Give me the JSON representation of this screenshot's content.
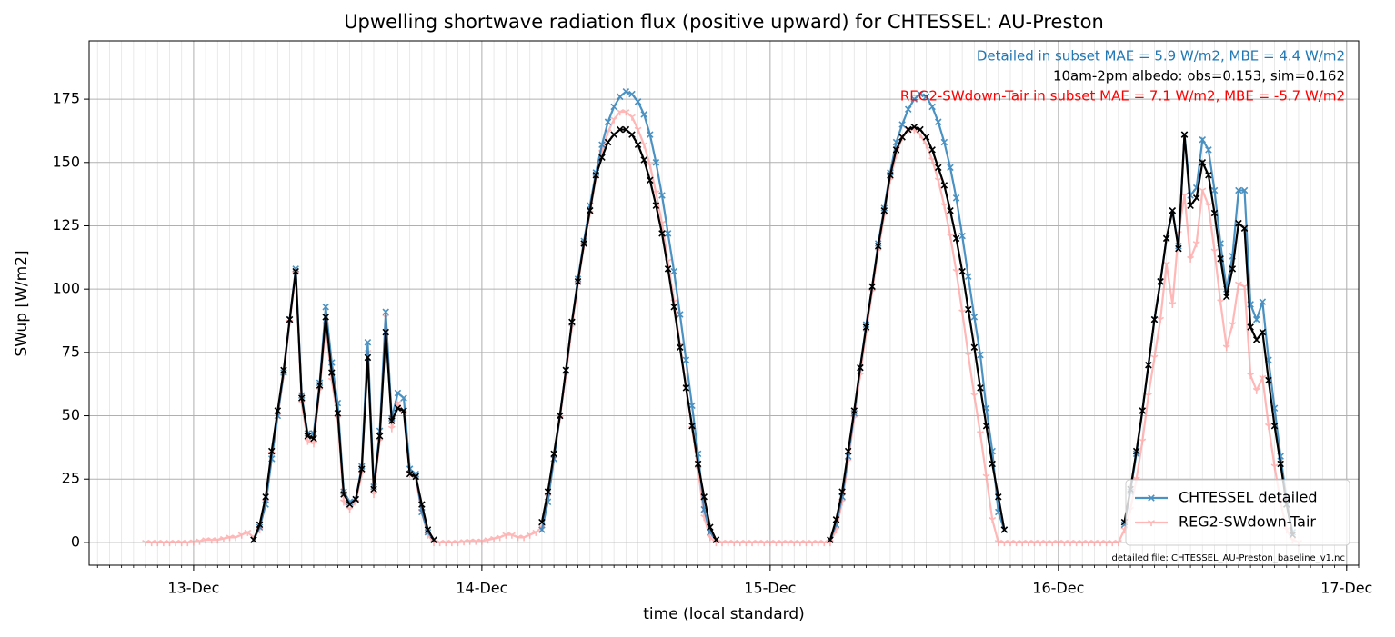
{
  "chart_data": {
    "type": "line",
    "title": "Upwelling shortwave radiation flux (positive upward) for CHTESSEL: AU-Preston",
    "xlabel": "time (local standard)",
    "ylabel": "SWup [W/m2]",
    "annotations": [
      {
        "text": "Detailed in subset MAE = 5.9 W/m2, MBE = 4.4 W/m2",
        "color": "#1f77b4"
      },
      {
        "text": "10am-2pm albedo: obs=0.153, sim=0.162",
        "color": "#000000"
      },
      {
        "text": "REG2-SWdown-Tair in subset MAE = 7.1 W/m2, MBE = -5.7 W/m2",
        "color": "#ff0000"
      }
    ],
    "footnote": "detailed file: CHTESSEL_AU-Preston_baseline_v1.nc",
    "xlim": [
      -8.7,
      97.0
    ],
    "ylim": [
      -9,
      198
    ],
    "xticks": [
      {
        "value": 0,
        "label": "13-Dec"
      },
      {
        "value": 24,
        "label": "14-Dec"
      },
      {
        "value": 48,
        "label": "15-Dec"
      },
      {
        "value": 72,
        "label": "16-Dec"
      },
      {
        "value": 96,
        "label": "17-Dec"
      }
    ],
    "xminorticks": [
      -8,
      -7,
      -6,
      -5,
      -4,
      -3,
      -2,
      -1,
      0,
      1,
      2,
      3,
      4,
      5,
      6,
      7,
      8,
      9,
      10,
      11,
      12,
      13,
      14,
      15,
      16,
      17,
      18,
      19,
      20,
      21,
      22,
      23,
      24,
      25,
      26,
      27,
      28,
      29,
      30,
      31,
      32,
      33,
      34,
      35,
      36,
      37,
      38,
      39,
      40,
      41,
      42,
      43,
      44,
      45,
      46,
      47,
      48,
      49,
      50,
      51,
      52,
      53,
      54,
      55,
      56,
      57,
      58,
      59,
      60,
      61,
      62,
      63,
      64,
      65,
      66,
      67,
      68,
      69,
      70,
      71,
      72,
      73,
      74,
      75,
      76,
      77,
      78,
      79,
      80,
      81,
      82,
      83,
      84,
      85,
      86,
      87,
      88,
      89,
      90,
      91,
      92,
      93,
      94,
      95,
      96,
      97
    ],
    "yticks": [
      0,
      25,
      50,
      75,
      100,
      125,
      150,
      175
    ],
    "grid": true,
    "legend": "lower right",
    "x": [
      -4,
      -3.5,
      -3,
      -2.5,
      -2,
      -1.5,
      -1,
      -0.5,
      0,
      0.5,
      1,
      1.5,
      2,
      2.5,
      3,
      3.5,
      4,
      4.5,
      5,
      5.5,
      6,
      6.5,
      7,
      7.5,
      8,
      8.5,
      9,
      9.5,
      10,
      10.5,
      11,
      11.5,
      12,
      12.5,
      13,
      13.5,
      14,
      14.5,
      15,
      15.5,
      16,
      16.5,
      17,
      17.5,
      18,
      18.5,
      19,
      19.5,
      20,
      20.5,
      21,
      21.5,
      22,
      22.5,
      23,
      23.5,
      24,
      24.5,
      25,
      25.5,
      26,
      26.5,
      27,
      27.5,
      28,
      28.5,
      29,
      29.5,
      30,
      30.5,
      31,
      31.5,
      32,
      32.5,
      33,
      33.5,
      34,
      34.5,
      35,
      35.5,
      36,
      36.5,
      37,
      37.5,
      38,
      38.5,
      39,
      39.5,
      40,
      40.5,
      41,
      41.5,
      42,
      42.5,
      43,
      43.5,
      44,
      44.5,
      45,
      45.5,
      46,
      46.5,
      47,
      47.5,
      48,
      48.5,
      49,
      49.5,
      50,
      50.5,
      51,
      51.5,
      52,
      52.5,
      53,
      53.5,
      54,
      54.5,
      55,
      55.5,
      56,
      56.5,
      57,
      57.5,
      58,
      58.5,
      59,
      59.5,
      60,
      60.5,
      61,
      61.5,
      62,
      62.5,
      63,
      63.5,
      64,
      64.5,
      65,
      65.5,
      66,
      66.5,
      67,
      67.5,
      68,
      68.5,
      69,
      69.5,
      70,
      70.5,
      71,
      71.5,
      72,
      72.5,
      73,
      73.5,
      74,
      74.5,
      75,
      75.5,
      76,
      76.5,
      77,
      77.5,
      78,
      78.5,
      79,
      79.5,
      80,
      80.5,
      81,
      81.5,
      82,
      82.5,
      83,
      83.5,
      84,
      84.5,
      85,
      85.5,
      86,
      86.5,
      87,
      87.5,
      88,
      88.5,
      89,
      89.5,
      90,
      90.5,
      91,
      91.5,
      92
    ],
    "series": [
      {
        "name": "CHTESSEL detailed",
        "color": "#1f77b4",
        "marker": "x",
        "values": [
          null,
          null,
          null,
          null,
          null,
          null,
          null,
          null,
          null,
          null,
          null,
          null,
          null,
          null,
          null,
          null,
          null,
          null,
          1,
          6,
          15,
          33,
          50,
          67,
          88,
          108,
          58,
          43,
          43,
          63,
          93,
          71,
          55,
          20,
          16,
          17,
          30,
          79,
          22,
          44,
          91,
          49,
          59,
          57,
          29,
          27,
          12,
          4,
          1,
          null,
          null,
          null,
          null,
          null,
          null,
          null,
          null,
          null,
          null,
          null,
          null,
          null,
          null,
          null,
          null,
          null,
          5,
          16,
          33,
          50,
          68,
          87,
          104,
          119,
          133,
          146,
          157,
          166,
          172,
          176,
          178,
          177,
          174,
          169,
          161,
          150,
          137,
          122,
          107,
          90,
          72,
          54,
          35,
          13,
          4,
          1,
          null,
          null,
          null,
          null,
          null,
          null,
          null,
          null,
          null,
          null,
          null,
          null,
          null,
          null,
          null,
          null,
          null,
          null,
          1,
          7,
          18,
          34,
          51,
          69,
          86,
          101,
          118,
          132,
          146,
          158,
          165,
          171,
          175,
          177,
          176,
          172,
          166,
          158,
          148,
          136,
          121,
          105,
          89,
          74,
          53,
          36,
          12,
          5,
          null,
          null,
          null,
          null,
          null,
          null,
          null,
          null,
          null,
          null,
          null,
          null,
          null,
          null,
          null,
          null,
          null,
          null,
          null,
          7,
          20,
          35,
          52,
          70,
          88,
          103,
          120,
          131,
          117,
          161,
          137,
          140,
          159,
          155,
          139,
          118,
          100,
          113,
          139,
          139,
          94,
          88,
          95,
          72,
          53,
          34,
          17,
          4,
          null
        ]
      },
      {
        "name": "REG2-SWdown-Tair",
        "color": "#ff9999",
        "marker": "tri",
        "values": [
          0,
          0,
          0,
          0,
          0,
          0,
          0,
          0,
          0.2,
          0.5,
          1,
          1,
          1,
          1.5,
          2,
          2,
          3,
          4,
          2,
          5,
          16,
          35,
          50,
          66,
          87,
          106,
          55,
          40,
          39,
          60,
          86,
          64,
          49,
          16,
          13,
          16,
          27,
          75,
          19,
          40,
          89,
          45,
          55,
          51,
          27,
          25,
          12,
          3,
          0,
          0,
          0,
          0,
          0,
          0.3,
          0.5,
          0.5,
          0.5,
          1,
          1.5,
          2,
          3,
          3,
          2,
          2,
          3,
          4,
          6,
          18,
          33,
          49,
          66,
          85,
          102,
          117,
          130,
          144,
          154,
          162,
          167,
          170,
          170,
          168,
          163,
          157,
          149,
          138,
          126,
          111,
          95,
          78,
          61,
          45,
          29,
          10,
          2,
          0,
          0,
          0,
          0,
          0,
          0,
          0,
          0,
          0,
          0,
          0,
          0,
          0,
          0,
          0,
          0,
          0,
          0,
          0,
          0,
          5,
          16,
          32,
          49,
          66,
          83,
          99,
          115,
          129,
          143,
          153,
          160,
          163,
          163,
          161,
          157,
          151,
          143,
          133,
          121,
          107,
          91,
          74,
          58,
          43,
          26,
          9,
          0,
          0,
          0,
          0,
          0,
          0,
          0,
          0,
          0,
          0,
          0,
          0,
          0,
          0,
          0,
          0,
          0,
          0,
          0,
          0,
          0,
          5,
          13,
          25,
          40,
          58,
          73,
          88,
          110,
          94,
          122,
          137,
          112,
          118,
          139,
          133,
          115,
          95,
          77,
          86,
          102,
          101,
          66,
          60,
          65,
          46,
          30,
          16,
          5,
          1,
          0
        ]
      },
      {
        "color": "#000000",
        "marker": "x",
        "values": [
          null,
          null,
          null,
          null,
          null,
          null,
          null,
          null,
          null,
          null,
          null,
          null,
          null,
          null,
          null,
          null,
          null,
          null,
          1,
          7,
          18,
          36,
          52,
          68,
          88,
          107,
          57,
          42,
          41,
          62,
          89,
          67,
          51,
          19,
          15,
          17,
          29,
          73,
          21,
          42,
          83,
          48,
          53,
          52,
          27,
          26,
          15,
          5,
          1,
          null,
          null,
          null,
          null,
          null,
          null,
          null,
          null,
          null,
          null,
          null,
          null,
          null,
          null,
          null,
          null,
          null,
          8,
          20,
          35,
          50,
          68,
          87,
          103,
          118,
          131,
          145,
          152,
          158,
          161,
          163,
          163,
          161,
          157,
          151,
          143,
          133,
          122,
          108,
          93,
          77,
          61,
          46,
          31,
          18,
          6,
          1,
          null,
          null,
          null,
          null,
          null,
          null,
          null,
          null,
          null,
          null,
          null,
          null,
          null,
          null,
          null,
          null,
          null,
          null,
          1,
          9,
          20,
          36,
          52,
          69,
          85,
          101,
          117,
          131,
          145,
          155,
          160,
          163,
          164,
          163,
          160,
          155,
          148,
          141,
          131,
          120,
          107,
          92,
          77,
          61,
          46,
          31,
          18,
          5,
          null,
          null,
          null,
          null,
          null,
          null,
          null,
          null,
          null,
          null,
          null,
          null,
          null,
          null,
          null,
          null,
          null,
          null,
          null,
          8,
          21,
          36,
          52,
          70,
          88,
          103,
          120,
          131,
          116,
          161,
          133,
          136,
          150,
          145,
          130,
          112,
          97,
          108,
          126,
          124,
          85,
          80,
          83,
          64,
          46,
          31,
          15,
          3,
          null
        ]
      }
    ]
  }
}
